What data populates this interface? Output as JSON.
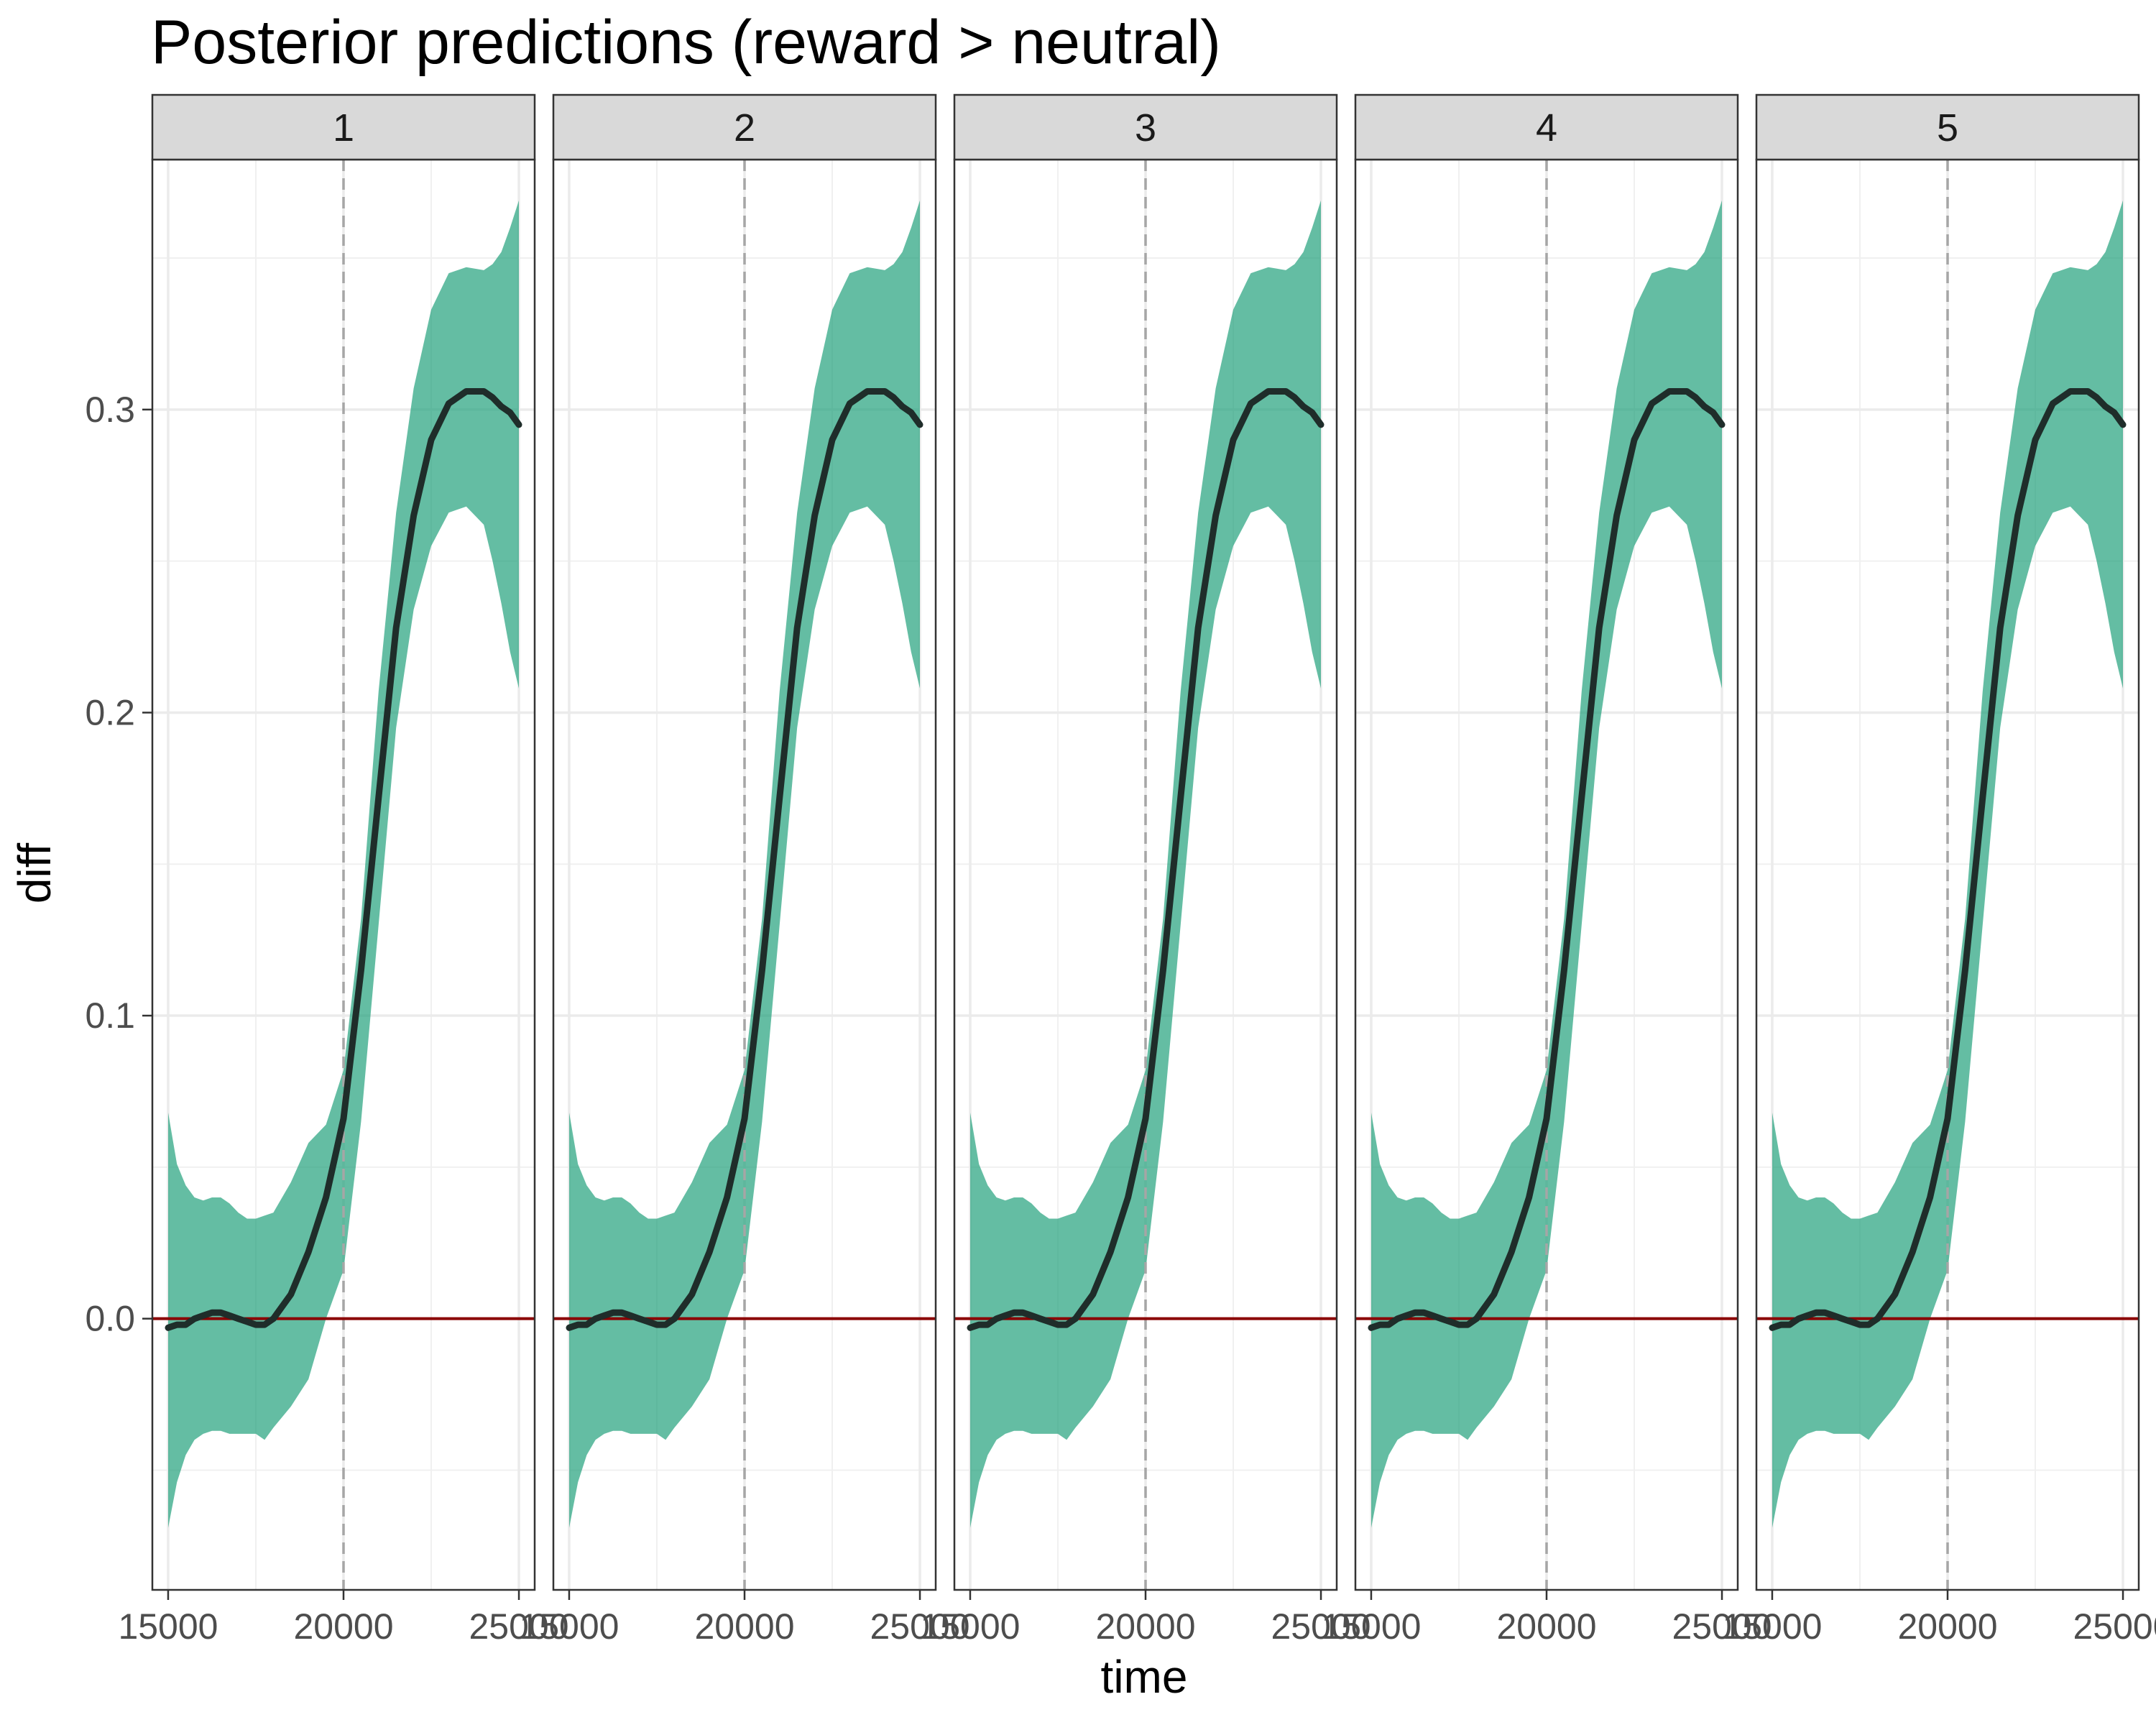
{
  "chart_data": {
    "type": "line",
    "title": "Posterior predictions (reward > neutral)",
    "xlabel": "time",
    "ylabel": "diff",
    "facets": [
      "1",
      "2",
      "3",
      "4",
      "5"
    ],
    "xlim": [
      14550,
      25450
    ],
    "ylim": [
      -0.0895,
      0.3825
    ],
    "x_ticks": [
      15000,
      20000,
      25000
    ],
    "x_tick_labels": [
      "15000",
      "20000",
      "25000"
    ],
    "y_ticks": [
      0.0,
      0.1,
      0.2,
      0.3
    ],
    "y_tick_labels": [
      "0.0",
      "0.1",
      "0.2",
      "0.3"
    ],
    "reference_hline": 0.0,
    "reference_vline": 20000,
    "grid": true,
    "colors": {
      "ribbon": "#1b9e77",
      "line": "#1f2d2a",
      "hline": "#8b0000",
      "vline": "#a6a6a6",
      "strip_fill": "#d9d9d9"
    },
    "series": [
      {
        "x": [
          15000,
          15250,
          15500,
          15750,
          16000,
          16250,
          16500,
          16750,
          17000,
          17250,
          17500,
          17750,
          18000,
          18500,
          19000,
          19500,
          20000,
          20500,
          21000,
          21500,
          22000,
          22500,
          23000,
          23500,
          24000,
          24250,
          24500,
          24750,
          25000
        ],
        "mean": [
          -0.003,
          -0.002,
          -0.002,
          0.0,
          0.001,
          0.002,
          0.002,
          0.001,
          0.0,
          -0.001,
          -0.002,
          -0.002,
          0.0,
          0.008,
          0.022,
          0.04,
          0.066,
          0.115,
          0.172,
          0.228,
          0.265,
          0.29,
          0.302,
          0.306,
          0.306,
          0.304,
          0.301,
          0.299,
          0.295
        ],
        "lower": [
          -0.069,
          -0.054,
          -0.045,
          -0.04,
          -0.038,
          -0.037,
          -0.037,
          -0.038,
          -0.038,
          -0.038,
          -0.038,
          -0.04,
          -0.036,
          -0.029,
          -0.02,
          0.0,
          0.016,
          0.065,
          0.13,
          0.195,
          0.234,
          0.255,
          0.266,
          0.268,
          0.262,
          0.25,
          0.236,
          0.22,
          0.208
        ],
        "upper": [
          0.068,
          0.051,
          0.044,
          0.04,
          0.039,
          0.04,
          0.04,
          0.038,
          0.035,
          0.033,
          0.033,
          0.034,
          0.035,
          0.045,
          0.058,
          0.064,
          0.082,
          0.132,
          0.207,
          0.266,
          0.307,
          0.333,
          0.345,
          0.347,
          0.346,
          0.348,
          0.352,
          0.36,
          0.369
        ]
      }
    ]
  }
}
